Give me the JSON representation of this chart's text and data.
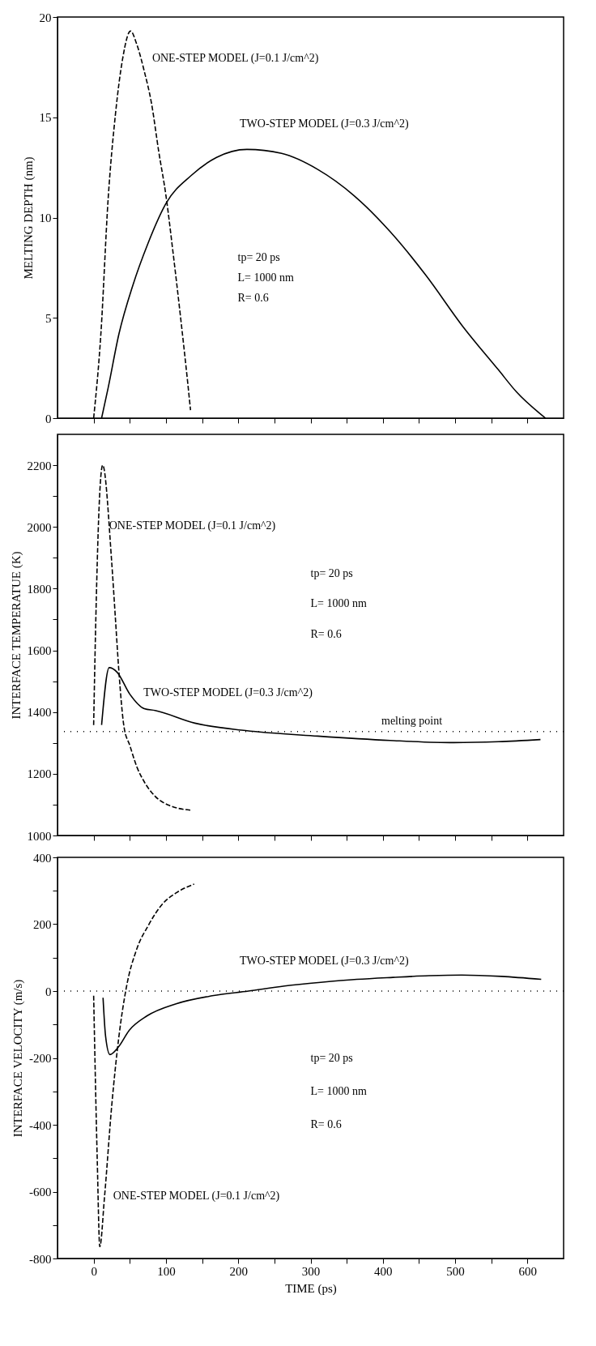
{
  "chart_data": [
    {
      "type": "line",
      "ylabel": "MELTING DEPTH (nm)",
      "xlim": [
        -50,
        650
      ],
      "xticks": [
        0,
        {
          "value": 50,
          "label": null
        },
        100,
        {
          "value": 150,
          "label": null
        },
        200,
        {
          "value": 250,
          "label": null
        },
        300,
        {
          "value": 350,
          "label": null
        },
        400,
        {
          "value": 450,
          "label": null
        },
        500,
        {
          "value": 550,
          "label": null
        },
        600
      ],
      "ylim": [
        0,
        20
      ],
      "yticks": [
        0,
        5,
        10,
        15,
        20
      ],
      "tick_labels": "y",
      "series": [
        {
          "name": "ONE-STEP MODEL (J=0.1 J/cm^2)",
          "color": "#000000",
          "line_style": "dashed",
          "x": [
            0,
            10,
            20,
            30,
            40,
            51,
            60,
            70,
            80,
            90,
            100,
            110,
            120,
            130,
            134
          ],
          "values": [
            0,
            4.2,
            10.9,
            15.1,
            17.9,
            19.3,
            18.6,
            17.3,
            15.7,
            13.3,
            11.1,
            8.2,
            5.1,
            1.8,
            0.4
          ]
        },
        {
          "name": "TWO-STEP MODEL (J=0.3 J/cm^2)",
          "color": "#000000",
          "line_style": "solid",
          "x": [
            11,
            20,
            35,
            54,
            75,
            100,
            135,
            170,
            212,
            260,
            310,
            360,
            410,
            460,
            510,
            560,
            585,
            625
          ],
          "values": [
            0,
            1.5,
            4.2,
            6.6,
            8.7,
            10.7,
            12.1,
            13,
            13.4,
            13.2,
            12.4,
            11.1,
            9.3,
            7.1,
            4.6,
            2.4,
            1.3,
            0
          ]
        }
      ],
      "annotations": [
        "tp= 20 ps",
        "L= 1000 nm",
        "R= 0.6"
      ]
    },
    {
      "type": "line",
      "ylabel": "INTERFACE TEMPERATUE (K)",
      "xlim": [
        -50,
        650
      ],
      "xticks": [
        0,
        {
          "value": 50,
          "label": null
        },
        100,
        {
          "value": 150,
          "label": null
        },
        200,
        {
          "value": 250,
          "label": null
        },
        300,
        {
          "value": 350,
          "label": null
        },
        400,
        {
          "value": 450,
          "label": null
        },
        500,
        {
          "value": 550,
          "label": null
        },
        600
      ],
      "ylim": [
        1000,
        2300
      ],
      "yticks": [
        1000,
        {
          "value": 1100,
          "label": null
        },
        1200,
        {
          "value": 1300,
          "label": null
        },
        1400,
        {
          "value": 1500,
          "label": null
        },
        1600,
        {
          "value": 1700,
          "label": null
        },
        1800,
        {
          "value": 1900,
          "label": null
        },
        2000,
        {
          "value": 2100,
          "label": null
        },
        2200
      ],
      "tick_labels": "y",
      "series": [
        {
          "name": "ONE-STEP MODEL (J=0.1 J/cm^2)",
          "color": "#000000",
          "line_style": "dashed",
          "x": [
            0,
            2.5,
            7.5,
            12.5,
            25,
            30,
            35,
            42,
            50,
            60,
            70,
            85,
            105,
            134
          ],
          "values": [
            1358,
            1648,
            2062,
            2200,
            1885,
            1707,
            1529,
            1352,
            1292,
            1221,
            1174,
            1127,
            1097,
            1082
          ]
        },
        {
          "name": "TWO-STEP MODEL (J=0.3 J/cm^2)",
          "color": "#000000",
          "line_style": "solid",
          "x": [
            11,
            21.5,
            32.5,
            50,
            70,
            85,
            140,
            210,
            310,
            410,
            498,
            560,
            618
          ],
          "values": [
            1358,
            1544,
            1529,
            1458,
            1411,
            1405,
            1364,
            1340,
            1322,
            1308,
            1301,
            1304,
            1311
          ]
        }
      ],
      "ref_lines": [
        {
          "axis": "y",
          "value": 1337,
          "label": "melting point",
          "line_style": "dotted"
        }
      ],
      "annotations": [
        "tp= 20 ps",
        "L= 1000 nm",
        "R= 0.6"
      ]
    },
    {
      "type": "line",
      "xlabel": "TIME (ps)",
      "ylabel": "INTERFACE VELOCITY (m/s)",
      "xlim": [
        -50,
        650
      ],
      "xticks": [
        0,
        {
          "value": 50,
          "label": null
        },
        100,
        {
          "value": 150,
          "label": null
        },
        200,
        {
          "value": 250,
          "label": null
        },
        300,
        {
          "value": 350,
          "label": null
        },
        400,
        {
          "value": 450,
          "label": null
        },
        500,
        {
          "value": 550,
          "label": null
        },
        600
      ],
      "ylim": [
        -800,
        400
      ],
      "yticks": [
        -800,
        {
          "value": -700,
          "label": null
        },
        -600,
        {
          "value": -500,
          "label": null
        },
        -400,
        {
          "value": -300,
          "label": null
        },
        -200,
        {
          "value": -100,
          "label": null
        },
        0,
        {
          "value": 100,
          "label": null
        },
        200,
        {
          "value": 300,
          "label": null
        },
        400
      ],
      "series": [
        {
          "name": "ONE-STEP MODEL (J=0.1 J/cm^2)",
          "color": "#000000",
          "line_style": "dashed",
          "x": [
            0,
            5,
            8.5,
            15,
            25,
            35,
            45,
            60,
            75,
            95,
            115,
            139
          ],
          "values": [
            -14,
            -507,
            -765,
            -617,
            -343,
            -135,
            8,
            128,
            194,
            260,
            295,
            320
          ]
        },
        {
          "name": "TWO-STEP MODEL (J=0.3 J/cm^2)",
          "color": "#000000",
          "line_style": "solid",
          "x": [
            13,
            16.5,
            22.5,
            34,
            49,
            74,
            114,
            164,
            214,
            264,
            314,
            364,
            414,
            464,
            509,
            564,
            619
          ],
          "values": [
            -20,
            -135,
            -190,
            -168,
            -118,
            -74,
            -38,
            -14,
            0,
            15,
            26,
            35,
            41,
            46,
            48,
            44,
            35
          ]
        }
      ],
      "ref_lines": [
        {
          "axis": "y",
          "value": 0,
          "line_style": "dotted"
        }
      ],
      "annotations": [
        "tp= 20 ps",
        "L= 1000 nm",
        "R= 0.6"
      ]
    }
  ]
}
